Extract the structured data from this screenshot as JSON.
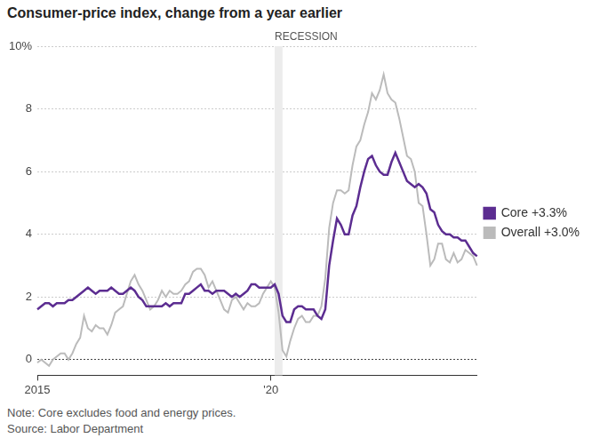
{
  "chart_data": {
    "type": "line",
    "title": "Consumer-price index, change from a year earlier",
    "note": "Note: Core excludes food and energy prices.",
    "source": "Source: Labor Department",
    "categories": [
      "2015",
      null,
      null,
      null,
      null,
      null,
      null,
      null,
      null,
      null,
      null,
      null,
      null,
      null,
      null,
      null,
      null,
      null,
      null,
      null,
      null,
      null,
      null,
      null,
      null,
      null,
      null,
      null,
      null,
      null,
      null,
      null,
      null,
      null,
      null,
      null,
      null,
      null,
      null,
      null,
      null,
      null,
      null,
      null,
      null,
      null,
      null,
      null,
      null,
      null,
      null,
      null,
      null,
      null,
      null,
      null,
      null,
      null,
      null,
      null,
      "'20",
      null,
      null,
      null,
      null,
      null,
      null,
      null,
      null,
      null,
      null,
      null,
      null,
      null,
      null,
      null,
      null,
      null,
      null,
      null,
      null,
      null,
      null,
      null,
      null,
      null,
      null,
      null,
      null,
      null,
      null,
      null,
      null,
      null,
      null,
      null,
      null,
      null,
      null,
      null,
      null,
      null,
      null,
      null,
      null,
      null,
      null,
      null,
      null,
      null,
      null,
      null,
      null,
      null
    ],
    "series": [
      {
        "name": "Core +3.3%",
        "color": "#5c2d91",
        "values": [
          1.6,
          1.7,
          1.8,
          1.8,
          1.7,
          1.8,
          1.8,
          1.8,
          1.9,
          1.9,
          2.0,
          2.1,
          2.2,
          2.3,
          2.2,
          2.1,
          2.2,
          2.2,
          2.2,
          2.3,
          2.2,
          2.1,
          2.1,
          2.2,
          2.3,
          2.2,
          2.0,
          1.9,
          1.7,
          1.7,
          1.7,
          1.7,
          1.7,
          1.8,
          1.7,
          1.8,
          1.8,
          1.8,
          2.1,
          2.1,
          2.2,
          2.3,
          2.4,
          2.2,
          2.2,
          2.1,
          2.2,
          2.2,
          2.2,
          2.1,
          2.0,
          2.1,
          2.0,
          2.1,
          2.2,
          2.4,
          2.4,
          2.3,
          2.3,
          2.3,
          2.3,
          2.4,
          2.1,
          1.4,
          1.2,
          1.2,
          1.6,
          1.7,
          1.7,
          1.6,
          1.6,
          1.6,
          1.4,
          1.3,
          1.6,
          3.0,
          3.8,
          4.5,
          4.3,
          4.0,
          4.0,
          4.6,
          4.9,
          5.5,
          6.0,
          6.4,
          6.5,
          6.2,
          6.0,
          5.9,
          5.9,
          6.3,
          6.6,
          6.3,
          6.0,
          5.7,
          5.6,
          5.5,
          5.6,
          5.5,
          5.3,
          4.8,
          4.7,
          4.3,
          4.1,
          4.0,
          4.0,
          3.9,
          3.9,
          3.8,
          3.8,
          3.6,
          3.4,
          3.3
        ]
      },
      {
        "name": "Overall +3.0%",
        "color": "#bbbbbb",
        "values": [
          -0.1,
          0.0,
          -0.1,
          -0.2,
          0.0,
          0.1,
          0.2,
          0.2,
          0.0,
          0.2,
          0.5,
          0.7,
          1.4,
          1.0,
          0.9,
          1.1,
          1.0,
          1.0,
          0.8,
          1.1,
          1.5,
          1.6,
          1.7,
          2.1,
          2.5,
          2.7,
          2.4,
          2.2,
          1.9,
          1.6,
          1.7,
          1.9,
          2.2,
          2.0,
          2.2,
          2.1,
          2.1,
          2.2,
          2.4,
          2.5,
          2.8,
          2.9,
          2.9,
          2.7,
          2.3,
          2.5,
          2.2,
          1.9,
          1.6,
          1.5,
          1.9,
          2.0,
          1.8,
          1.6,
          1.8,
          1.7,
          1.7,
          1.8,
          2.1,
          2.3,
          2.5,
          2.3,
          1.5,
          0.3,
          0.1,
          0.6,
          1.0,
          1.3,
          1.4,
          1.2,
          1.2,
          1.4,
          1.4,
          1.7,
          2.6,
          4.2,
          5.0,
          5.4,
          5.4,
          5.3,
          5.4,
          6.2,
          6.8,
          7.0,
          7.5,
          7.9,
          8.5,
          8.3,
          8.6,
          9.1,
          8.5,
          8.3,
          8.2,
          7.7,
          7.1,
          6.5,
          6.4,
          6.0,
          5.0,
          4.9,
          4.0,
          3.0,
          3.2,
          3.7,
          3.7,
          3.2,
          3.1,
          3.4,
          3.1,
          3.2,
          3.5,
          3.4,
          3.3,
          3.0
        ]
      }
    ],
    "ylim": [
      -0.5,
      10
    ],
    "yticks": [
      0,
      2,
      4,
      6,
      8,
      {
        "value": 10,
        "label": "10%"
      }
    ],
    "grid": true,
    "legend": "right",
    "annotations": [
      {
        "text": "RECESSION",
        "x_start": 61,
        "x_end": 63
      }
    ]
  }
}
